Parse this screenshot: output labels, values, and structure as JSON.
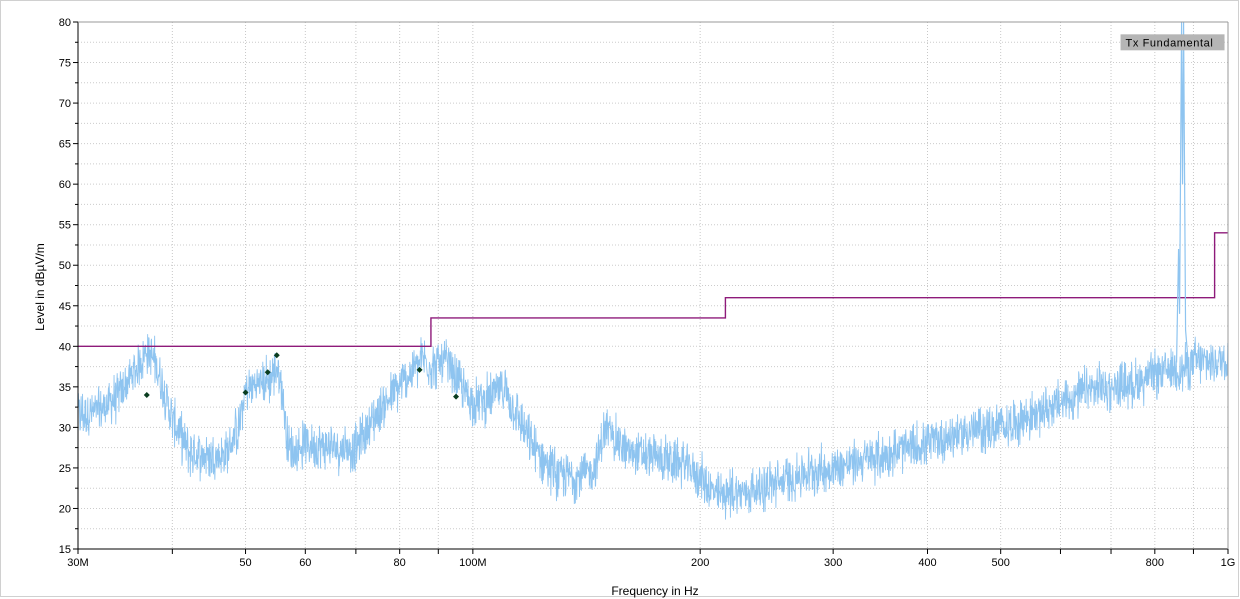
{
  "chart_data": {
    "type": "line",
    "xlabel": "Frequency in Hz",
    "ylabel": "Level in dBµV/m",
    "x_scale": "log",
    "xlim": [
      30000000,
      1000000000
    ],
    "ylim": [
      15,
      80
    ],
    "grid": true,
    "x_tick_values": [
      30000000,
      40000000,
      50000000,
      60000000,
      70000000,
      80000000,
      90000000,
      100000000,
      200000000,
      300000000,
      400000000,
      500000000,
      600000000,
      700000000,
      800000000,
      900000000,
      1000000000
    ],
    "x_tick_labels": [
      {
        "value": 30000000,
        "label": "30M"
      },
      {
        "value": 50000000,
        "label": "50"
      },
      {
        "value": 60000000,
        "label": "60"
      },
      {
        "value": 80000000,
        "label": "80"
      },
      {
        "value": 100000000,
        "label": "100M"
      },
      {
        "value": 200000000,
        "label": "200"
      },
      {
        "value": 300000000,
        "label": "300"
      },
      {
        "value": 400000000,
        "label": "400"
      },
      {
        "value": 500000000,
        "label": "500"
      },
      {
        "value": 800000000,
        "label": "800"
      },
      {
        "value": 1000000000,
        "label": "1G"
      }
    ],
    "y_ticks": [
      15,
      20,
      25,
      30,
      35,
      40,
      45,
      50,
      55,
      60,
      65,
      70,
      75,
      80
    ],
    "series": [
      {
        "color": "#8ec4f0",
        "style": "noisy-spectrum",
        "x": [
          30000000,
          32000000,
          34000000,
          36000000,
          37000000,
          38000000,
          40000000,
          42000000,
          44000000,
          47000000,
          49000000,
          50000000,
          52000000,
          54000000,
          55000000,
          56000000,
          57000000,
          58000000,
          60000000,
          65000000,
          70000000,
          75000000,
          80000000,
          84000000,
          86000000,
          88000000,
          92000000,
          95000000,
          100000000,
          105000000,
          110000000,
          120000000,
          130000000,
          140000000,
          145000000,
          150000000,
          160000000,
          170000000,
          190000000,
          200000000,
          210000000,
          220000000,
          230000000,
          250000000,
          280000000,
          300000000,
          350000000,
          400000000,
          450000000,
          500000000,
          550000000,
          600000000,
          650000000,
          700000000,
          750000000,
          800000000,
          830000000,
          850000000,
          870000000,
          880000000,
          900000000,
          950000000,
          1000000000
        ],
        "values": [
          31.5,
          32,
          34,
          37.5,
          39.5,
          38,
          31,
          27,
          26.5,
          26.5,
          30,
          34.5,
          35.5,
          36,
          37.5,
          34,
          27.5,
          27,
          28,
          27.5,
          27.5,
          32,
          35,
          37.5,
          38.5,
          37.5,
          38,
          36,
          33,
          33.5,
          35,
          27.5,
          24,
          24,
          25,
          30,
          27,
          26.5,
          25.5,
          24,
          21.5,
          22,
          22,
          23,
          24.5,
          25,
          26.5,
          28,
          29.5,
          30,
          31.5,
          33,
          34.5,
          35,
          35.5,
          36.5,
          37,
          37.5,
          37,
          37.5,
          38,
          38,
          38.5
        ]
      },
      {
        "color": "#8e1a7a",
        "style": "limit-step",
        "x": [
          30000000,
          88000000,
          88000000,
          216000000,
          216000000,
          960000000,
          960000000,
          1000000000
        ],
        "values": [
          40,
          40,
          43.5,
          43.5,
          46,
          46,
          54,
          54
        ]
      }
    ],
    "peak": {
      "x": 868000000,
      "value": 80,
      "color": "#8ec4f0"
    },
    "markers": {
      "color": "#0a3d1f",
      "x": [
        37000000,
        50000000,
        53500000,
        55000000,
        85000000,
        95000000
      ],
      "values": [
        34,
        34.3,
        36.8,
        38.9,
        37.1,
        33.8
      ]
    },
    "annotations": [
      {
        "text": "Tx Fundamental",
        "x": 725000000,
        "value": 77
      }
    ]
  }
}
